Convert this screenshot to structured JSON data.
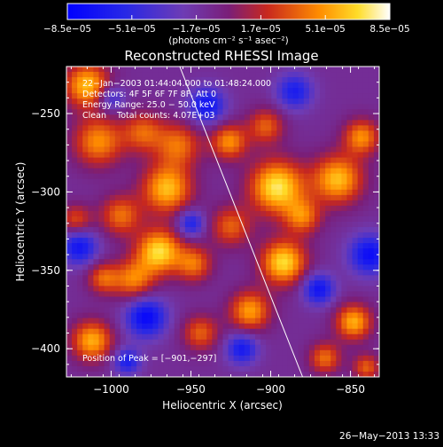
{
  "chart_data": {
    "type": "heatmap",
    "title": "Reconstructed RHESSI Image",
    "xlabel": "Heliocentric X (arcsec)",
    "ylabel": "Heliocentric Y (arcsec)",
    "xlim": [
      -1028,
      -832
    ],
    "ylim": [
      -418,
      -220
    ],
    "x_ticks": [
      -1000,
      -950,
      -900,
      -850
    ],
    "x_tick_labels": [
      "−1000",
      "−950",
      "−900",
      "−850"
    ],
    "y_ticks": [
      -250,
      -300,
      -350,
      -400
    ],
    "y_tick_labels": [
      "−250",
      "−300",
      "−350",
      "−400"
    ],
    "colorbar": {
      "tick_labels": [
        "−8.5e−05",
        "−5.1e−05",
        "−1.7e−05",
        "1.7e−05",
        "5.1e−05",
        "8.5e−05"
      ],
      "range": [
        -8.5e-05,
        8.5e-05
      ],
      "units_label": "(photons cm⁻² s⁻¹ asec⁻²)"
    },
    "info_lines": [
      "22−Jan−2003 01:44:04.000 to 01:48:24.000",
      "Detectors: 4F 5F 6F 7F 8F, Att 0",
      "Energy Range: 25.0 − 50.0 keV",
      "Clean    Total counts: 4.07E+03"
    ],
    "peak_label": "Position of Peak = [−901,−297]",
    "peak_position": [
      -901,
      -297
    ],
    "limb_line": {
      "start": [
        -957,
        -220
      ],
      "end": [
        -880,
        -418
      ]
    },
    "intensity_blobs": [
      {
        "x": -1015,
        "y": -232,
        "s": 10,
        "a": 0.85
      },
      {
        "x": -1008,
        "y": -268,
        "s": 11,
        "a": 0.7
      },
      {
        "x": -980,
        "y": -262,
        "s": 9,
        "a": 0.55
      },
      {
        "x": -958,
        "y": -270,
        "s": 10,
        "a": 0.6
      },
      {
        "x": -926,
        "y": -268,
        "s": 8,
        "a": 0.7
      },
      {
        "x": -903,
        "y": -258,
        "s": 8,
        "a": 0.55
      },
      {
        "x": -896,
        "y": -297,
        "s": 12,
        "a": 1.0
      },
      {
        "x": -858,
        "y": -292,
        "s": 11,
        "a": 0.85
      },
      {
        "x": -843,
        "y": -265,
        "s": 8,
        "a": 0.7
      },
      {
        "x": -965,
        "y": -298,
        "s": 11,
        "a": 0.85
      },
      {
        "x": -994,
        "y": -315,
        "s": 9,
        "a": 0.6
      },
      {
        "x": -925,
        "y": -322,
        "s": 9,
        "a": 0.55
      },
      {
        "x": -970,
        "y": -338,
        "s": 10,
        "a": 0.95
      },
      {
        "x": -986,
        "y": -356,
        "s": 9,
        "a": 0.65
      },
      {
        "x": -948,
        "y": -346,
        "s": 8,
        "a": 0.6
      },
      {
        "x": -892,
        "y": -345,
        "s": 10,
        "a": 0.95
      },
      {
        "x": -880,
        "y": -316,
        "s": 8,
        "a": 0.6
      },
      {
        "x": -913,
        "y": -376,
        "s": 9,
        "a": 0.75
      },
      {
        "x": -944,
        "y": -390,
        "s": 8,
        "a": 0.55
      },
      {
        "x": -1012,
        "y": -395,
        "s": 9,
        "a": 0.8
      },
      {
        "x": -1005,
        "y": -355,
        "s": 7,
        "a": 0.55
      },
      {
        "x": -1022,
        "y": -318,
        "s": 7,
        "a": 0.5
      },
      {
        "x": -848,
        "y": -383,
        "s": 8,
        "a": 0.8
      },
      {
        "x": -866,
        "y": -406,
        "s": 7,
        "a": 0.6
      },
      {
        "x": -840,
        "y": -412,
        "s": 6,
        "a": 0.55
      },
      {
        "x": -1020,
        "y": -335,
        "s": 8,
        "a": -0.7
      },
      {
        "x": -978,
        "y": -380,
        "s": 9,
        "a": -0.8
      },
      {
        "x": -940,
        "y": -245,
        "s": 8,
        "a": -0.7
      },
      {
        "x": -885,
        "y": -236,
        "s": 8,
        "a": -0.6
      },
      {
        "x": -838,
        "y": -340,
        "s": 9,
        "a": -0.75
      },
      {
        "x": -870,
        "y": -362,
        "s": 7,
        "a": -0.7
      },
      {
        "x": -918,
        "y": -400,
        "s": 7,
        "a": -0.65
      },
      {
        "x": -950,
        "y": -320,
        "s": 6,
        "a": -0.6
      },
      {
        "x": -1000,
        "y": -240,
        "s": 6,
        "a": -0.5
      },
      {
        "x": -990,
        "y": -408,
        "s": 6,
        "a": -0.6
      }
    ]
  },
  "footer": {
    "timestamp": "26−May−2013 13:33"
  }
}
